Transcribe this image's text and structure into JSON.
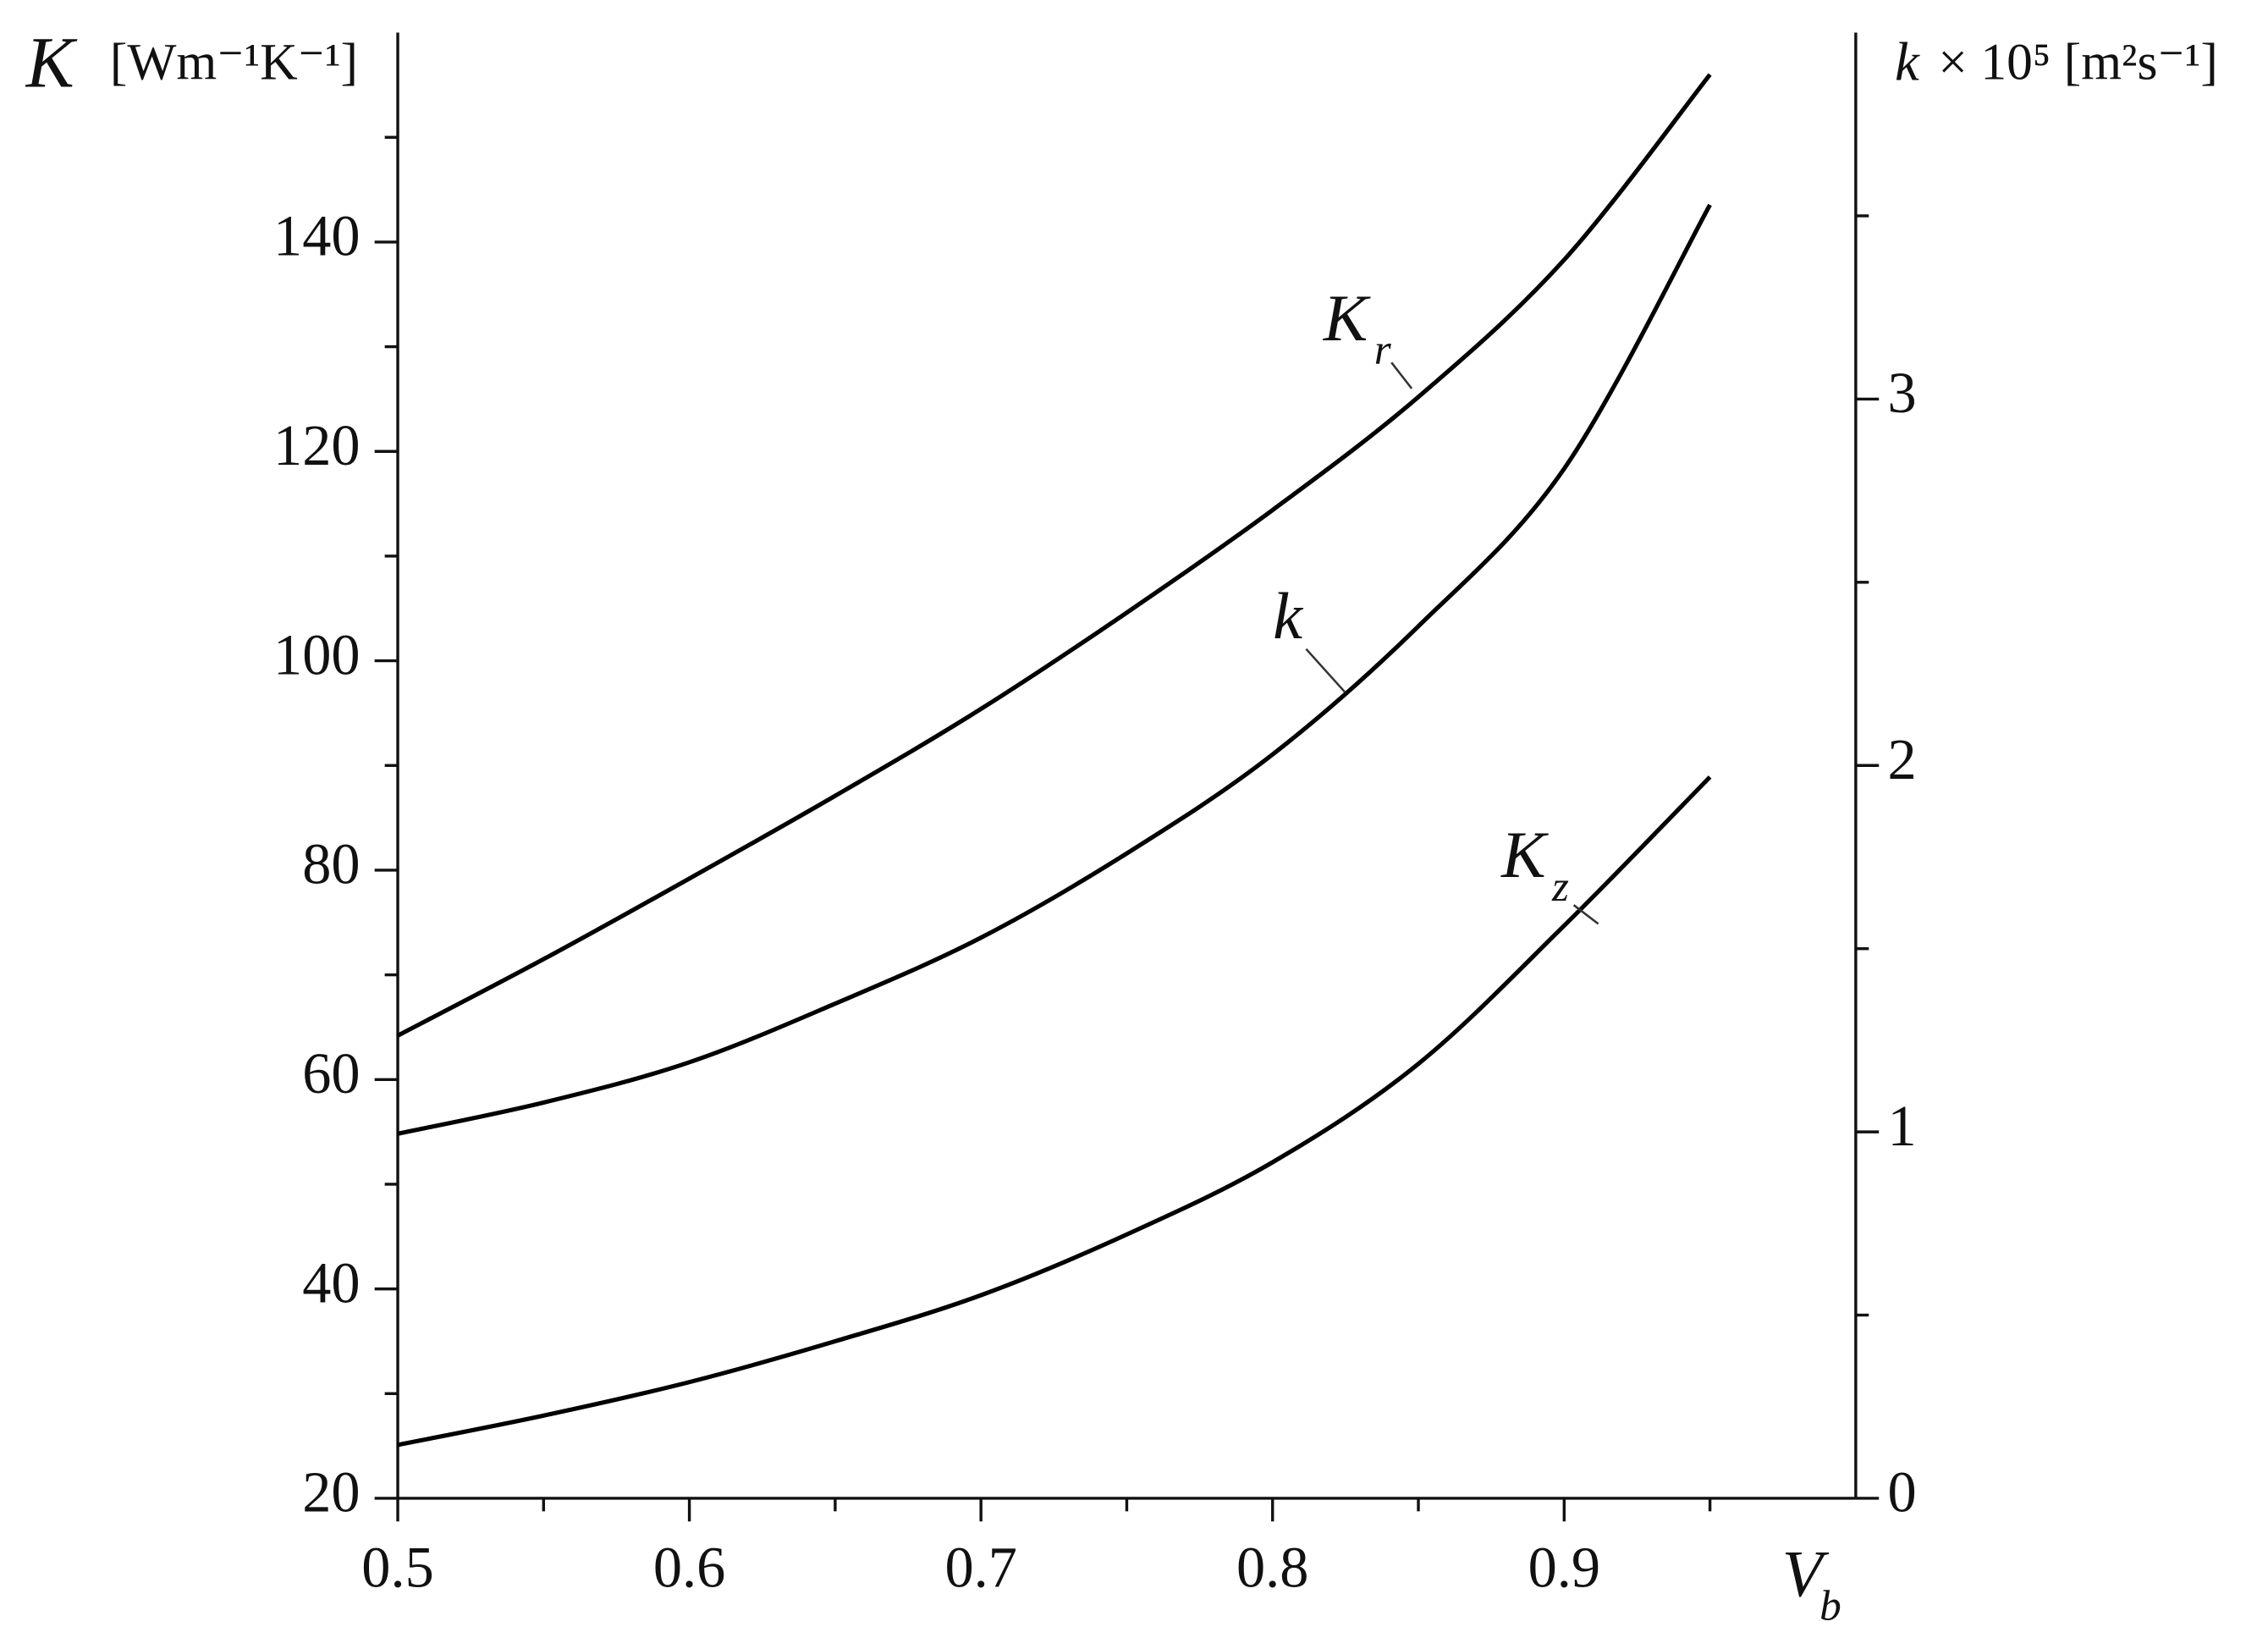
{
  "chart_data": {
    "type": "line",
    "ylabel": {
      "symbol": "K",
      "unit": "[Wm⁻¹K⁻¹]"
    },
    "y2label": {
      "symbol": "k",
      "unit": "× 10⁵ [m²s⁻¹]"
    },
    "xlabel": {
      "symbol": "V",
      "subscript": "b"
    },
    "x": [
      0.5,
      0.55,
      0.6,
      0.65,
      0.7,
      0.75,
      0.8,
      0.85,
      0.9,
      0.95
    ],
    "series": [
      {
        "name": "K",
        "subscript": "r",
        "color": "#000000",
        "axis": "y",
        "values": [
          64.2,
          71.5,
          79.2,
          87.1,
          95.4,
          104.6,
          114.4,
          125.2,
          138.3,
          156
        ]
      },
      {
        "name": "k",
        "color": "#000000",
        "axis": "y2",
        "values": [
          0.995,
          1.08,
          1.19,
          1.35,
          1.53,
          1.76,
          2.03,
          2.38,
          2.81,
          3.53
        ]
      },
      {
        "name": "K",
        "subscript": "z",
        "color": "#000000",
        "axis": "y",
        "values": [
          25.1,
          27.9,
          31.1,
          35.0,
          39.4,
          45.2,
          52.1,
          61.5,
          74.7,
          88.9
        ]
      }
    ],
    "xlim": [
      0.5,
      1.0
    ],
    "xticks": [
      0.5,
      0.6,
      0.7,
      0.8,
      0.9
    ],
    "xminorticks": [
      0.55,
      0.65,
      0.75,
      0.85,
      0.95
    ],
    "ylim": [
      20,
      160
    ],
    "yticks": [
      20,
      40,
      60,
      80,
      100,
      120,
      140
    ],
    "yminorticks": [
      30,
      50,
      70,
      90,
      110,
      130,
      150
    ],
    "y2lim": [
      0,
      4
    ],
    "y2ticks": [
      0,
      1,
      2,
      3
    ],
    "y2minorticks": [
      0.5,
      1.5,
      2.5,
      3.5
    ]
  }
}
